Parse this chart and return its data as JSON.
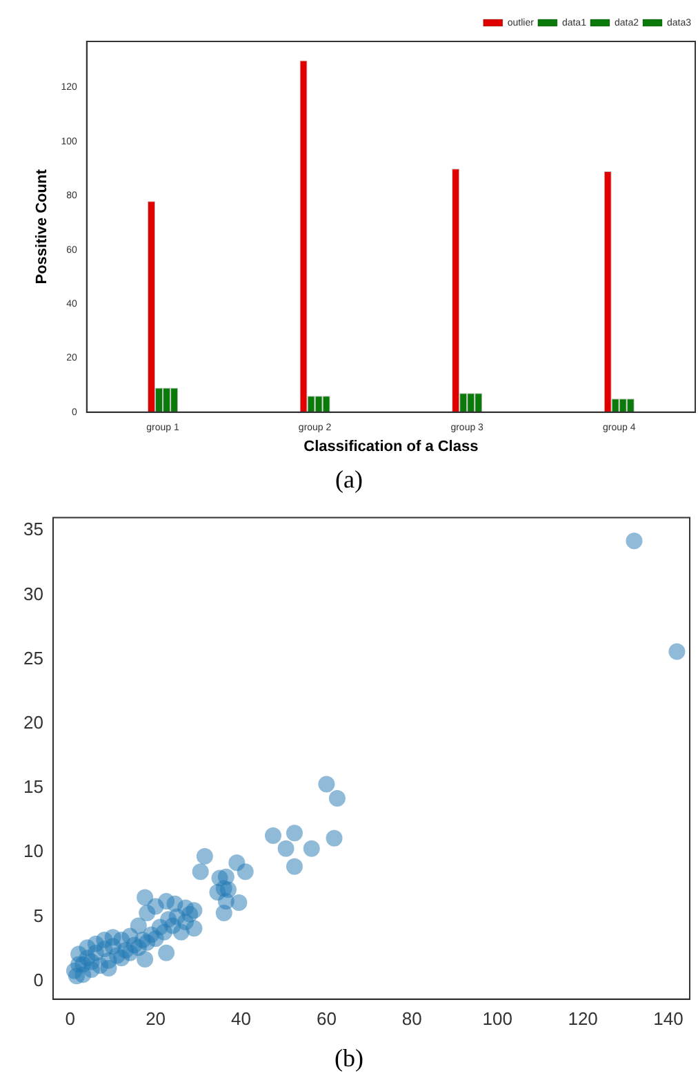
{
  "chart_data": [
    {
      "type": "bar",
      "xlabel": "Classification of a Class",
      "ylabel": "Possitive Count",
      "categories": [
        "group 1",
        "group 2",
        "group 3",
        "group 4"
      ],
      "series": [
        {
          "name": "outlier",
          "color": "#e00000",
          "values": [
            78,
            130,
            90,
            89
          ]
        },
        {
          "name": "data1",
          "color": "#0a7a0a",
          "values": [
            9,
            6,
            7,
            5
          ]
        },
        {
          "name": "data2",
          "color": "#0a7a0a",
          "values": [
            9,
            6,
            7,
            5
          ]
        },
        {
          "name": "data3",
          "color": "#0a7a0a",
          "values": [
            9,
            6,
            7,
            5
          ]
        }
      ],
      "ylim": [
        0,
        137
      ],
      "yticks": [
        0,
        20,
        40,
        60,
        80,
        100,
        120
      ],
      "grid": false,
      "legend": "top right",
      "annotations": [
        "(a)"
      ]
    },
    {
      "type": "scatter",
      "marker": "circle",
      "xlim": [
        -4,
        145
      ],
      "ylim": [
        -1.4,
        36
      ],
      "xticks": [
        0,
        20,
        40,
        60,
        80,
        100,
        120,
        140
      ],
      "yticks": [
        0,
        5,
        10,
        15,
        20,
        25,
        30,
        35
      ],
      "grid": false,
      "legend": false,
      "annotations": [
        "(b)"
      ],
      "series": [
        {
          "color": "#1f77b4",
          "x": [
            132,
            142,
            60,
            62.5,
            61.8,
            47.5,
            52.5,
            50.5,
            56.5,
            52.5,
            41,
            39,
            31.5,
            30.5,
            36.5,
            35,
            34.5,
            36,
            37,
            36,
            36.5,
            39.5,
            17.5,
            22.5,
            17.5,
            29,
            29,
            27,
            24.5,
            22.5,
            20,
            18,
            16,
            14,
            12,
            10,
            8,
            6,
            4,
            2,
            1,
            3,
            5,
            7,
            9,
            11,
            13,
            15,
            17,
            19,
            21,
            23,
            25,
            27,
            26,
            28,
            2,
            4,
            6,
            8,
            10,
            3,
            5,
            12,
            14,
            16,
            18,
            20,
            22,
            24,
            1.5,
            9
          ],
          "values": [
            34.2,
            25.6,
            15.3,
            14.2,
            11.1,
            11.3,
            11.5,
            10.3,
            10.3,
            8.9,
            8.5,
            9.2,
            9.7,
            8.5,
            8.1,
            8,
            6.9,
            7.2,
            7.1,
            5.3,
            6.2,
            6.1,
            6.5,
            2.2,
            1.7,
            5.5,
            4.1,
            5.7,
            6,
            6.2,
            5.8,
            5.3,
            4.3,
            3.5,
            3.2,
            2.7,
            2.5,
            2.2,
            1.8,
            1.3,
            0.8,
            0.5,
            0.9,
            1.2,
            1.6,
            2,
            2.4,
            2.8,
            3.2,
            3.6,
            4.2,
            4.8,
            5,
            4.6,
            3.8,
            5.2,
            2.1,
            2.6,
            2.9,
            3.2,
            3.4,
            1.3,
            1.5,
            1.8,
            2.2,
            2.6,
            3,
            3.3,
            3.8,
            4.3,
            0.4,
            1
          ]
        }
      ]
    }
  ]
}
